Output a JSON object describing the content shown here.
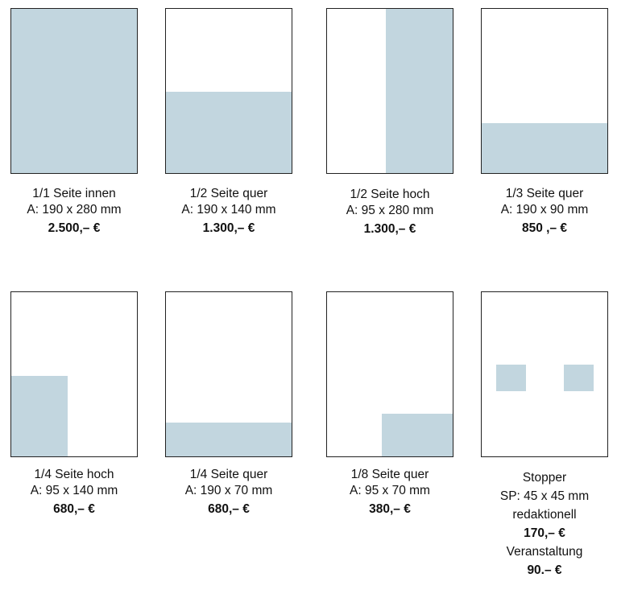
{
  "ads": [
    {
      "name": "1/1 Seite innen",
      "size": "A: 190 x 280 mm",
      "price": "2.500,– €",
      "fill": "full"
    },
    {
      "name": "1/2 Seite quer",
      "size": "A: 190 x 140 mm",
      "price": "1.300,– €",
      "fill": "half-horizontal-bottom"
    },
    {
      "name": "1/2 Seite hoch",
      "size": "A: 95 x 280 mm",
      "price": "1.300,– €",
      "fill": "half-vertical-right"
    },
    {
      "name": "1/3 Seite quer",
      "size": "A: 190 x 90 mm",
      "price": "850 ,– €",
      "fill": "third-horizontal-bottom"
    },
    {
      "name": "1/4 Seite hoch",
      "size": "A: 95 x 140 mm",
      "price": "680,– €",
      "fill": "quarter-vertical-bottom-left"
    },
    {
      "name": "1/4 Seite quer",
      "size": "A: 190 x 70 mm",
      "price": "680,– €",
      "fill": "quarter-horizontal-bottom"
    },
    {
      "name": "1/8 Seite quer",
      "size": "A: 95 x 70 mm",
      "price": "380,– €",
      "fill": "eighth-bottom-right"
    }
  ],
  "stopper": {
    "name": "Stopper",
    "size": "SP: 45 x 45 mm",
    "editorial_label": "redaktionell",
    "editorial_price": "170,– €",
    "event_label": "Veranstaltung",
    "event_price": "90.– €"
  },
  "colors": {
    "fill": "#c2d6df",
    "border": "#222222"
  }
}
